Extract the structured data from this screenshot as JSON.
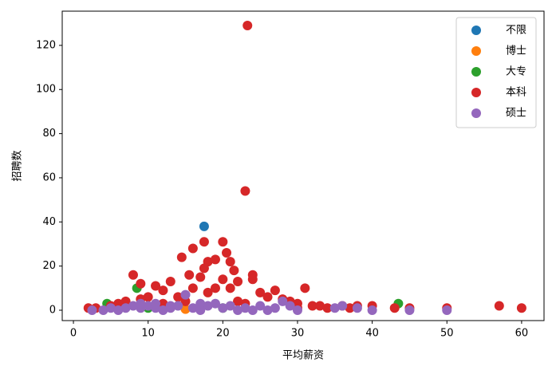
{
  "chart_data": {
    "type": "scatter",
    "x_label": "平均薪资",
    "y_label": "招聘数",
    "xlim": [
      -1.5,
      63
    ],
    "ylim": [
      -4.7,
      135.5
    ],
    "xticks": [
      0,
      10,
      20,
      30,
      40,
      50,
      60
    ],
    "yticks": [
      0,
      20,
      40,
      60,
      80,
      100,
      120
    ],
    "legend": "upper right",
    "series": [
      {
        "name": "不限",
        "color": "#1f77b4",
        "x": [
          17.5
        ],
        "values": [
          38
        ]
      },
      {
        "name": "博士",
        "color": "#ff7f0e",
        "x": [
          15
        ],
        "values": [
          0.5
        ]
      },
      {
        "name": "大专",
        "color": "#2ca02c",
        "x": [
          4.5,
          8.5,
          43.5,
          20,
          10,
          6
        ],
        "values": [
          3,
          10,
          3,
          1,
          1,
          1
        ]
      },
      {
        "name": "本科",
        "color": "#d62728",
        "x": [
          23.3,
          23,
          17.5,
          20,
          14.5,
          16,
          20.5,
          21,
          8,
          9,
          15.5,
          17,
          18,
          19,
          24,
          24,
          22,
          13,
          11,
          12,
          16,
          19,
          21,
          25,
          27,
          31,
          26,
          28,
          29,
          30,
          32,
          33,
          34,
          36,
          38,
          40,
          43,
          57,
          60,
          2,
          3,
          5,
          7,
          10,
          14,
          18,
          22,
          30,
          37,
          45,
          50,
          23,
          12,
          15,
          9,
          6,
          20,
          21.5,
          17.5
        ],
        "values": [
          129,
          54,
          31,
          31,
          24,
          28,
          26,
          22,
          16,
          12,
          16,
          15,
          22,
          23,
          16,
          14,
          13,
          13,
          11,
          9,
          10,
          10,
          10,
          8,
          9,
          10,
          6,
          5,
          4,
          3,
          2,
          2,
          1,
          2,
          2,
          2,
          1,
          2,
          1,
          1,
          1,
          2,
          4,
          6,
          6,
          8,
          4,
          1,
          1,
          1,
          1,
          3,
          3,
          4,
          5,
          3,
          14,
          18,
          19
        ]
      },
      {
        "name": "硕士",
        "color": "#9467bd",
        "x": [
          2.5,
          4,
          5,
          6,
          7,
          8,
          9,
          10,
          11,
          12,
          13,
          14,
          15,
          16,
          17,
          18,
          19,
          20,
          21,
          22,
          23,
          24,
          25,
          26,
          27,
          28,
          29,
          30,
          35,
          36,
          38,
          40,
          45,
          50,
          9,
          11,
          13,
          17
        ],
        "values": [
          0,
          0,
          1,
          0,
          1,
          2,
          1,
          2,
          1,
          0,
          1,
          2,
          7,
          1,
          0,
          2,
          3,
          1,
          2,
          0,
          1,
          0,
          2,
          0,
          1,
          4,
          2,
          0,
          1,
          2,
          1,
          0,
          0,
          0,
          3,
          3,
          2,
          3
        ]
      }
    ]
  }
}
